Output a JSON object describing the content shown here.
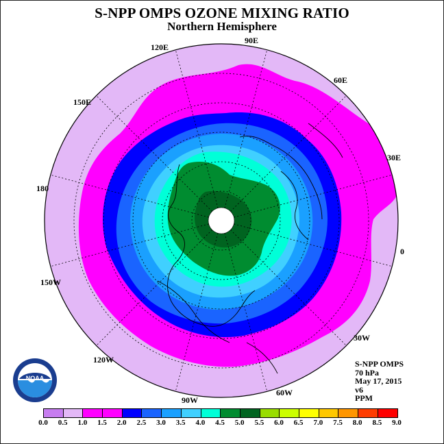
{
  "title": "S-NPP OMPS OZONE MIXING RATIO",
  "subtitle": "Northern Hemisphere",
  "longitude_labels": [
    {
      "text": "90E"
    },
    {
      "text": "60E"
    },
    {
      "text": "30E"
    },
    {
      "text": "0"
    },
    {
      "text": "30W"
    },
    {
      "text": "60W"
    },
    {
      "text": "90W"
    },
    {
      "text": "120W"
    },
    {
      "text": "150W"
    },
    {
      "text": "180"
    },
    {
      "text": "150E"
    },
    {
      "text": "120E"
    }
  ],
  "info": {
    "instrument": "S-NPP OMPS",
    "level": "70 hPa",
    "date": "May 17, 2015",
    "version": "v6",
    "units": "PPM"
  },
  "logo": {
    "text": "NOAA",
    "ring_text": "NATIONAL OCEANIC AND ATMOSPHERIC ADMINISTRATION · U.S. DEPARTMENT OF COMMERCE"
  },
  "colorbar": {
    "ticks": [
      "0.0",
      "0.5",
      "1.0",
      "1.5",
      "2.0",
      "2.5",
      "3.0",
      "3.5",
      "4.0",
      "4.5",
      "5.0",
      "5.5",
      "6.0",
      "6.5",
      "7.0",
      "7.5",
      "8.0",
      "8.5",
      "9.0"
    ],
    "colors": [
      "#c77df0",
      "#e3b8f7",
      "#ff00ff",
      "#ff00ff",
      "#0000ff",
      "#1a64ff",
      "#1aa0ff",
      "#40d0ff",
      "#00ffd8",
      "#008c30",
      "#006420",
      "#99dd00",
      "#ccff00",
      "#ffff00",
      "#ffc800",
      "#ff9600",
      "#ff3c00",
      "#ff0000",
      "#8b5a2b"
    ]
  },
  "zones": [
    {
      "name": "0.5-1.0",
      "color": "#e3b8f7"
    },
    {
      "name": "1.0-2.0",
      "color": "#ff00ff"
    },
    {
      "name": "2.0-2.5",
      "color": "#0000ff"
    },
    {
      "name": "2.5-3.0",
      "color": "#1a64ff"
    },
    {
      "name": "3.0-3.5",
      "color": "#1aa0ff"
    },
    {
      "name": "3.5-4.0",
      "color": "#40d0ff"
    },
    {
      "name": "4.0-4.5",
      "color": "#00ffd8"
    },
    {
      "name": "4.5-5.0",
      "color": "#008c30"
    },
    {
      "name": "5.0-5.5",
      "color": "#006420"
    },
    {
      "name": "no-data",
      "color": "#ffffff"
    }
  ]
}
